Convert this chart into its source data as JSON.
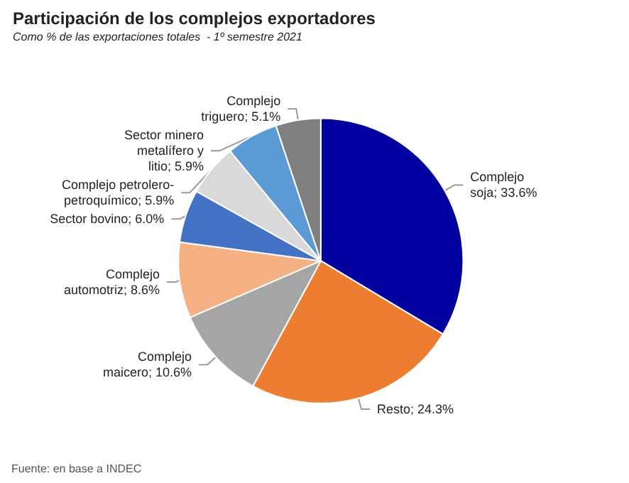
{
  "chart_data": {
    "type": "pie",
    "title": "Participación de los complejos exportadores",
    "subtitle": "Como % de las exportaciones totales  - 1º semestre 2021",
    "categories": [
      "Complejo soja",
      "Resto",
      "Complejo maicero",
      "Complejo automotriz",
      "Sector bovino",
      "Complejo petrolero-petroquímico",
      "Sector minero metalífero y litio",
      "Complejo triguero"
    ],
    "values": [
      33.6,
      24.3,
      10.6,
      8.6,
      6.0,
      5.9,
      5.9,
      5.1
    ],
    "value_labels": [
      "33.6%",
      "24.3%",
      "10.6%",
      "8.6%",
      "6.0%",
      "5.9%",
      "5.9%",
      "5.1%"
    ],
    "colors": [
      "#00009e",
      "#ed7d31",
      "#a5a5a5",
      "#f4b183",
      "#4472c4",
      "#d9d9d9",
      "#5b9bd5",
      "#7f7f7f"
    ],
    "data_labels": true,
    "legend": false,
    "annotations": [
      "Fuente: en base a INDEC"
    ]
  }
}
